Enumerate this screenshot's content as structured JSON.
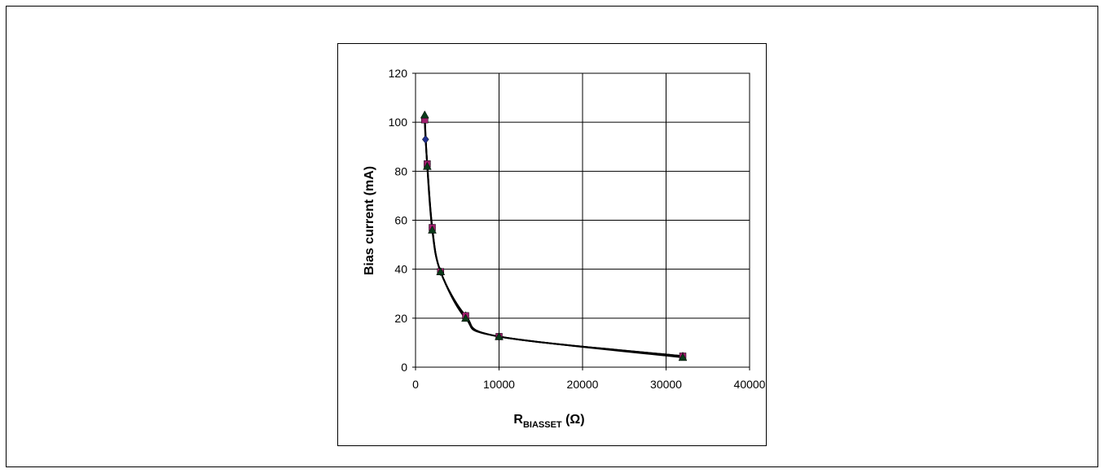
{
  "chart_data": {
    "type": "scatter",
    "title": "",
    "xlabel": "R",
    "xlabel_subscript": "BIASSET",
    "xlabel_suffix": " (Ω)",
    "ylabel": "Bias current (mA)",
    "xlim": [
      0,
      40000
    ],
    "ylim": [
      0,
      120
    ],
    "x_ticks": [
      0,
      10000,
      20000,
      30000,
      40000
    ],
    "y_ticks": [
      0,
      20,
      40,
      60,
      80,
      100,
      120
    ],
    "grid": true,
    "legend": "none",
    "series": [
      {
        "marker": "diamond",
        "color": "#1f2f8f",
        "x": [
          1100,
          1200,
          1400,
          2000,
          3000,
          6000,
          10000,
          32000
        ],
        "y": [
          101,
          93,
          83,
          57,
          39,
          21,
          12.5,
          4.5
        ]
      },
      {
        "marker": "square",
        "color": "#a0206e",
        "x": [
          1100,
          1400,
          2000,
          3000,
          6000,
          10000,
          32000
        ],
        "y": [
          101,
          83,
          57,
          39,
          21,
          12.5,
          4.5
        ]
      },
      {
        "marker": "triangle",
        "color": "#0a3a1a",
        "x": [
          1100,
          1400,
          2000,
          3000,
          6000,
          10000,
          32000
        ],
        "y": [
          103,
          82,
          56,
          39,
          20,
          12.5,
          4
        ]
      }
    ]
  }
}
